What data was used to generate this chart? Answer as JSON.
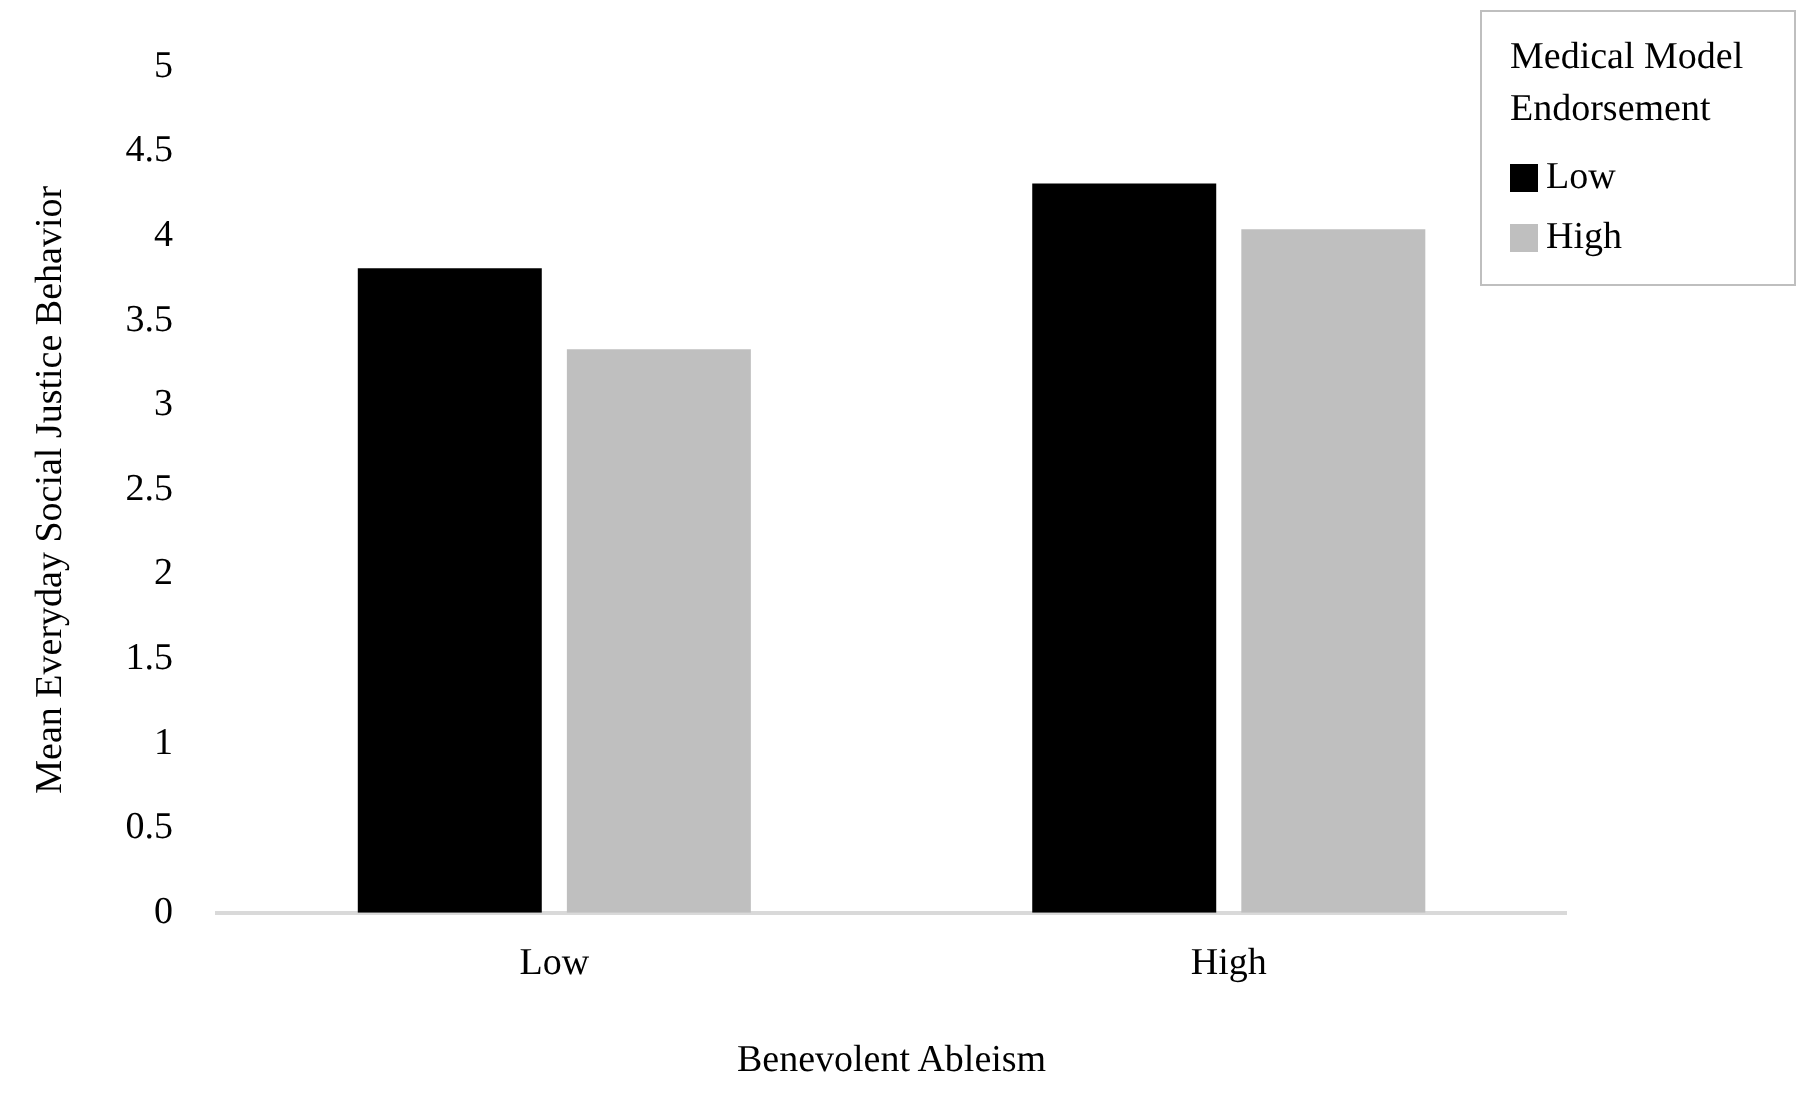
{
  "chart_data": {
    "type": "bar",
    "xlabel": "Benevolent Ableism",
    "ylabel": "Mean Everyday Social Justice Behavior",
    "legend_title": "Medical Model Endorsement",
    "categories": [
      "Low",
      "High"
    ],
    "series": [
      {
        "name": "Low",
        "color": "#000000",
        "values": [
          3.81,
          4.31
        ]
      },
      {
        "name": "High",
        "color": "#bfbfbf",
        "values": [
          3.33,
          4.04
        ]
      }
    ],
    "ylim": [
      0,
      5
    ],
    "yticks": [
      0,
      0.5,
      1,
      1.5,
      2,
      2.5,
      3,
      3.5,
      4,
      4.5,
      5
    ],
    "grid": false,
    "legend": "top right"
  }
}
